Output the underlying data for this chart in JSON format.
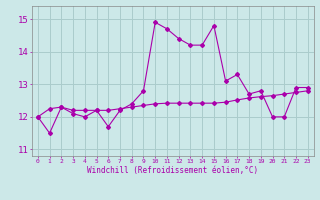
{
  "title": "",
  "xlabel": "Windchill (Refroidissement éolien,°C)",
  "background_color": "#cce8e8",
  "grid_color": "#aacccc",
  "line_color": "#aa00aa",
  "x_hours": [
    0,
    1,
    2,
    3,
    4,
    5,
    6,
    7,
    8,
    9,
    10,
    11,
    12,
    13,
    14,
    15,
    16,
    17,
    18,
    19,
    20,
    21,
    22,
    23
  ],
  "line1_y": [
    12.0,
    11.5,
    12.3,
    12.1,
    12.0,
    12.2,
    11.7,
    12.2,
    12.4,
    12.8,
    14.9,
    14.7,
    14.4,
    14.2,
    14.2,
    14.8,
    13.1,
    13.3,
    12.7,
    12.8,
    12.0,
    12.0,
    12.9,
    12.9
  ],
  "line2_y": [
    12.0,
    12.25,
    12.3,
    12.2,
    12.2,
    12.2,
    12.2,
    12.25,
    12.3,
    12.35,
    12.4,
    12.42,
    12.42,
    12.42,
    12.42,
    12.42,
    12.45,
    12.52,
    12.58,
    12.62,
    12.65,
    12.7,
    12.75,
    12.8
  ],
  "ylim": [
    10.8,
    15.4
  ],
  "yticks": [
    11,
    12,
    13,
    14,
    15
  ],
  "xticks": [
    0,
    1,
    2,
    3,
    4,
    5,
    6,
    7,
    8,
    9,
    10,
    11,
    12,
    13,
    14,
    15,
    16,
    17,
    18,
    19,
    20,
    21,
    22,
    23
  ]
}
